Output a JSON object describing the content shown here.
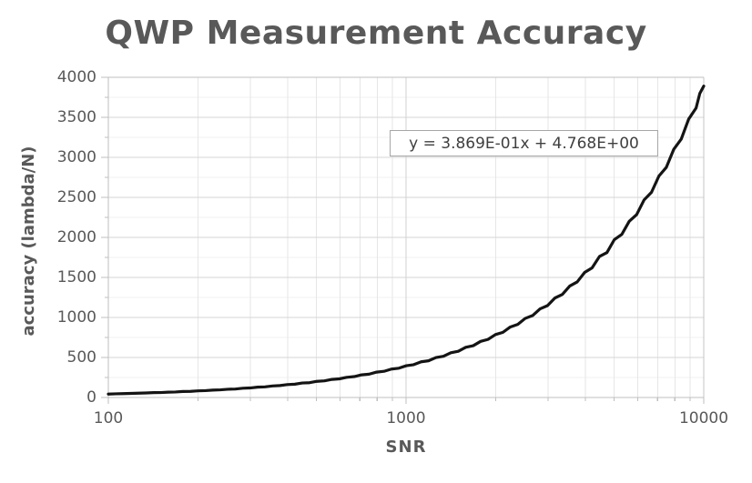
{
  "chart_data": {
    "type": "line",
    "title": "QWP Measurement Accuracy",
    "xlabel": "SNR",
    "ylabel": "accuracy (lambda/N)",
    "x_scale": "log",
    "xlim": [
      100,
      10000
    ],
    "ylim": [
      0,
      4000
    ],
    "grid": "major+minor",
    "legend": "none",
    "x_major_ticks": [
      100,
      1000,
      10000
    ],
    "x_major_tick_labels": [
      "100",
      "1000",
      "10000"
    ],
    "x_minor_ticks": [
      200,
      300,
      400,
      500,
      600,
      700,
      800,
      900,
      2000,
      3000,
      4000,
      5000,
      6000,
      7000,
      8000,
      9000
    ],
    "y_major_ticks": [
      0,
      500,
      1000,
      1500,
      2000,
      2500,
      3000,
      3500,
      4000
    ],
    "y_major_tick_labels": [
      "0",
      "500",
      "1000",
      "1500",
      "2000",
      "2500",
      "3000",
      "3500",
      "4000"
    ],
    "y_minor_ticks": [
      250,
      750,
      1250,
      1750,
      2250,
      2750,
      3250,
      3750
    ],
    "trendline": {
      "label": "y = 3.869E-01x + 4.768E+00",
      "slope": 0.3869,
      "intercept": 4.768
    },
    "series": [
      {
        "name": "accuracy",
        "color": "#141414",
        "points": [
          [
            100,
            43
          ],
          [
            106,
            46
          ],
          [
            112,
            48
          ],
          [
            119,
            51
          ],
          [
            126,
            54
          ],
          [
            134,
            57
          ],
          [
            142,
            61
          ],
          [
            150,
            62
          ],
          [
            159,
            67
          ],
          [
            168,
            69
          ],
          [
            178,
            75
          ],
          [
            189,
            77
          ],
          [
            200,
            83
          ],
          [
            212,
            86
          ],
          [
            224,
            92
          ],
          [
            238,
            96
          ],
          [
            252,
            103
          ],
          [
            267,
            106
          ],
          [
            283,
            116
          ],
          [
            299,
            119
          ],
          [
            317,
            129
          ],
          [
            336,
            133
          ],
          [
            356,
            144
          ],
          [
            377,
            149
          ],
          [
            399,
            161
          ],
          [
            423,
            166
          ],
          [
            448,
            181
          ],
          [
            474,
            185
          ],
          [
            502,
            202
          ],
          [
            532,
            208
          ],
          [
            564,
            226
          ],
          [
            597,
            233
          ],
          [
            632,
            252
          ],
          [
            670,
            261
          ],
          [
            709,
            283
          ],
          [
            751,
            291
          ],
          [
            796,
            317
          ],
          [
            843,
            327
          ],
          [
            893,
            355
          ],
          [
            946,
            366
          ],
          [
            1002,
            397
          ],
          [
            1061,
            410
          ],
          [
            1124,
            446
          ],
          [
            1190,
            459
          ],
          [
            1261,
            499
          ],
          [
            1335,
            515
          ],
          [
            1414,
            559
          ],
          [
            1498,
            577
          ],
          [
            1587,
            627
          ],
          [
            1681,
            647
          ],
          [
            1780,
            701
          ],
          [
            1885,
            726
          ],
          [
            1997,
            786
          ],
          [
            2115,
            814
          ],
          [
            2240,
            881
          ],
          [
            2373,
            913
          ],
          [
            2513,
            988
          ],
          [
            2662,
            1024
          ],
          [
            2819,
            1107
          ],
          [
            2986,
            1148
          ],
          [
            3163,
            1243
          ],
          [
            3350,
            1287
          ],
          [
            3548,
            1393
          ],
          [
            3758,
            1444
          ],
          [
            3980,
            1562
          ],
          [
            4216,
            1619
          ],
          [
            4465,
            1762
          ],
          [
            4729,
            1810
          ],
          [
            5009,
            1973
          ],
          [
            5305,
            2037
          ],
          [
            5619,
            2201
          ],
          [
            5951,
            2285
          ],
          [
            6303,
            2468
          ],
          [
            6676,
            2564
          ],
          [
            7071,
            2767
          ],
          [
            7489,
            2876
          ],
          [
            7933,
            3102
          ],
          [
            8402,
            3228
          ],
          [
            8899,
            3478
          ],
          [
            9425,
            3616
          ],
          [
            9700,
            3798
          ],
          [
            10000,
            3890
          ]
        ]
      }
    ]
  },
  "colors": {
    "title_text": "#595959",
    "tick_text": "#595959",
    "axis_line": "#bfbfbf",
    "grid_major_h": "#d6d6d6",
    "grid_minor_h": "#f0f0f0",
    "grid_minor_v": "#e6e6e6",
    "grid_major_v": "#d0d0d0",
    "plot_border_right": "#c4c4c4",
    "curve": "#141414",
    "equation_border": "#a6a6a6",
    "equation_text": "#3f3f3f"
  }
}
